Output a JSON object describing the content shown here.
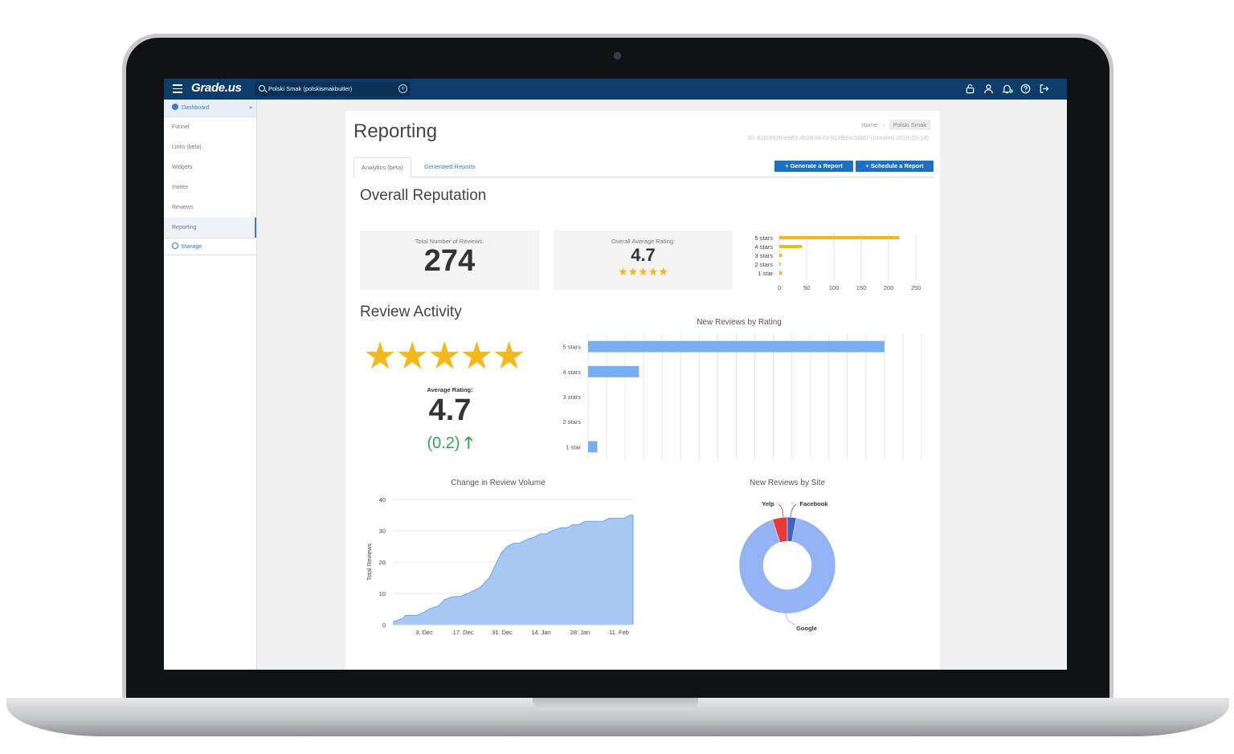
{
  "topbar": {
    "logo": "Grade.us",
    "search_value": "Polski Smak (polskismakbutler)",
    "icons": [
      "menu-icon",
      "lock-icon",
      "user-icon",
      "bell-icon",
      "help-icon",
      "logout-icon"
    ]
  },
  "sidebar": {
    "items": [
      {
        "label": "Dashboard"
      },
      {
        "label": "Funnel"
      },
      {
        "label": "Links (beta)"
      },
      {
        "label": "Widgets"
      },
      {
        "label": "Invites"
      },
      {
        "label": "Reviews"
      },
      {
        "label": "Reporting"
      },
      {
        "label": "Manage"
      }
    ]
  },
  "page": {
    "title": "Reporting",
    "breadcrumb_home": "Home",
    "breadcrumb_current": "Polski Smak",
    "meta_id": "ID: 626f4530-e563-4b28-8e7a-914fb9a29bd7 (Created 2018-03-14)",
    "tabs": [
      "Analytics (beta)",
      "Generated Reports"
    ],
    "buttons": {
      "generate": "+ Generate a Report",
      "schedule": "+ Schedule a Report"
    }
  },
  "overall": {
    "title": "Overall Reputation",
    "total_label": "Total Number of Reviews:",
    "total_value": "274",
    "avg_label": "Overall Average Rating:",
    "avg_value": "4.7",
    "avg_stars": "★★★★★"
  },
  "activity": {
    "title": "Review Activity",
    "stars": "★★★★★",
    "avg_label": "Average Rating:",
    "avg_value": "4.7",
    "change": "(0.2)",
    "change_arrow": "🡑"
  },
  "colors": {
    "topbar": "#0e3d6b",
    "accent": "#1c6fc4",
    "star": "#f5b81c",
    "bar_blue": "#78aef0",
    "positive": "#2fa84f"
  },
  "chart_data": [
    {
      "type": "bar",
      "orientation": "horizontal",
      "categories": [
        "5 stars",
        "4 stars",
        "3 stars",
        "2 stars",
        "1 star"
      ],
      "values": [
        220,
        42,
        5,
        2,
        5
      ],
      "xlim": [
        0,
        250
      ],
      "xticks": [
        "0",
        "50",
        "100",
        "150",
        "200",
        "250"
      ],
      "grid": true
    },
    {
      "type": "bar",
      "orientation": "horizontal",
      "title": "New Reviews by Rating",
      "categories": [
        "5 stars",
        "4 stars",
        "3 stars",
        "2 stars",
        "1 star"
      ],
      "values": [
        32,
        5.5,
        0,
        0,
        1
      ],
      "xlim": [
        0,
        36
      ],
      "grid": true
    },
    {
      "type": "area",
      "title": "Change in Review Volume",
      "ylabel": "Total Reviews",
      "ylim": [
        0,
        40
      ],
      "yticks": [
        "0",
        "10",
        "20",
        "30",
        "40"
      ],
      "xticks": [
        "3. Dec",
        "17. Dec",
        "31. Dec",
        "14. Jan",
        "28. Jan",
        "11. Feb"
      ],
      "x_days": [
        0,
        3,
        4,
        8,
        10,
        12,
        15,
        17,
        20,
        22,
        25,
        27,
        29,
        30,
        32,
        34,
        36,
        38,
        40,
        42,
        44,
        47,
        49,
        51,
        53,
        56,
        58,
        60,
        62,
        64,
        66,
        69,
        70,
        72,
        74,
        77,
        79,
        80
      ],
      "y": [
        1,
        2,
        3,
        3,
        4,
        5,
        6,
        8,
        9,
        9,
        10,
        11,
        12,
        13,
        15,
        19,
        23,
        25,
        26,
        26,
        27,
        28,
        29,
        29,
        30,
        31,
        31,
        32,
        32,
        33,
        33,
        33,
        33,
        34,
        34,
        34,
        35,
        35
      ]
    },
    {
      "type": "pie",
      "title": "New Reviews by Site",
      "labels": [
        "Google",
        "Yelp",
        "Facebook"
      ],
      "values": [
        92,
        5,
        3
      ],
      "colors": [
        "#93b3f5",
        "#e53a3a",
        "#3f62c4"
      ],
      "donut": true
    }
  ]
}
